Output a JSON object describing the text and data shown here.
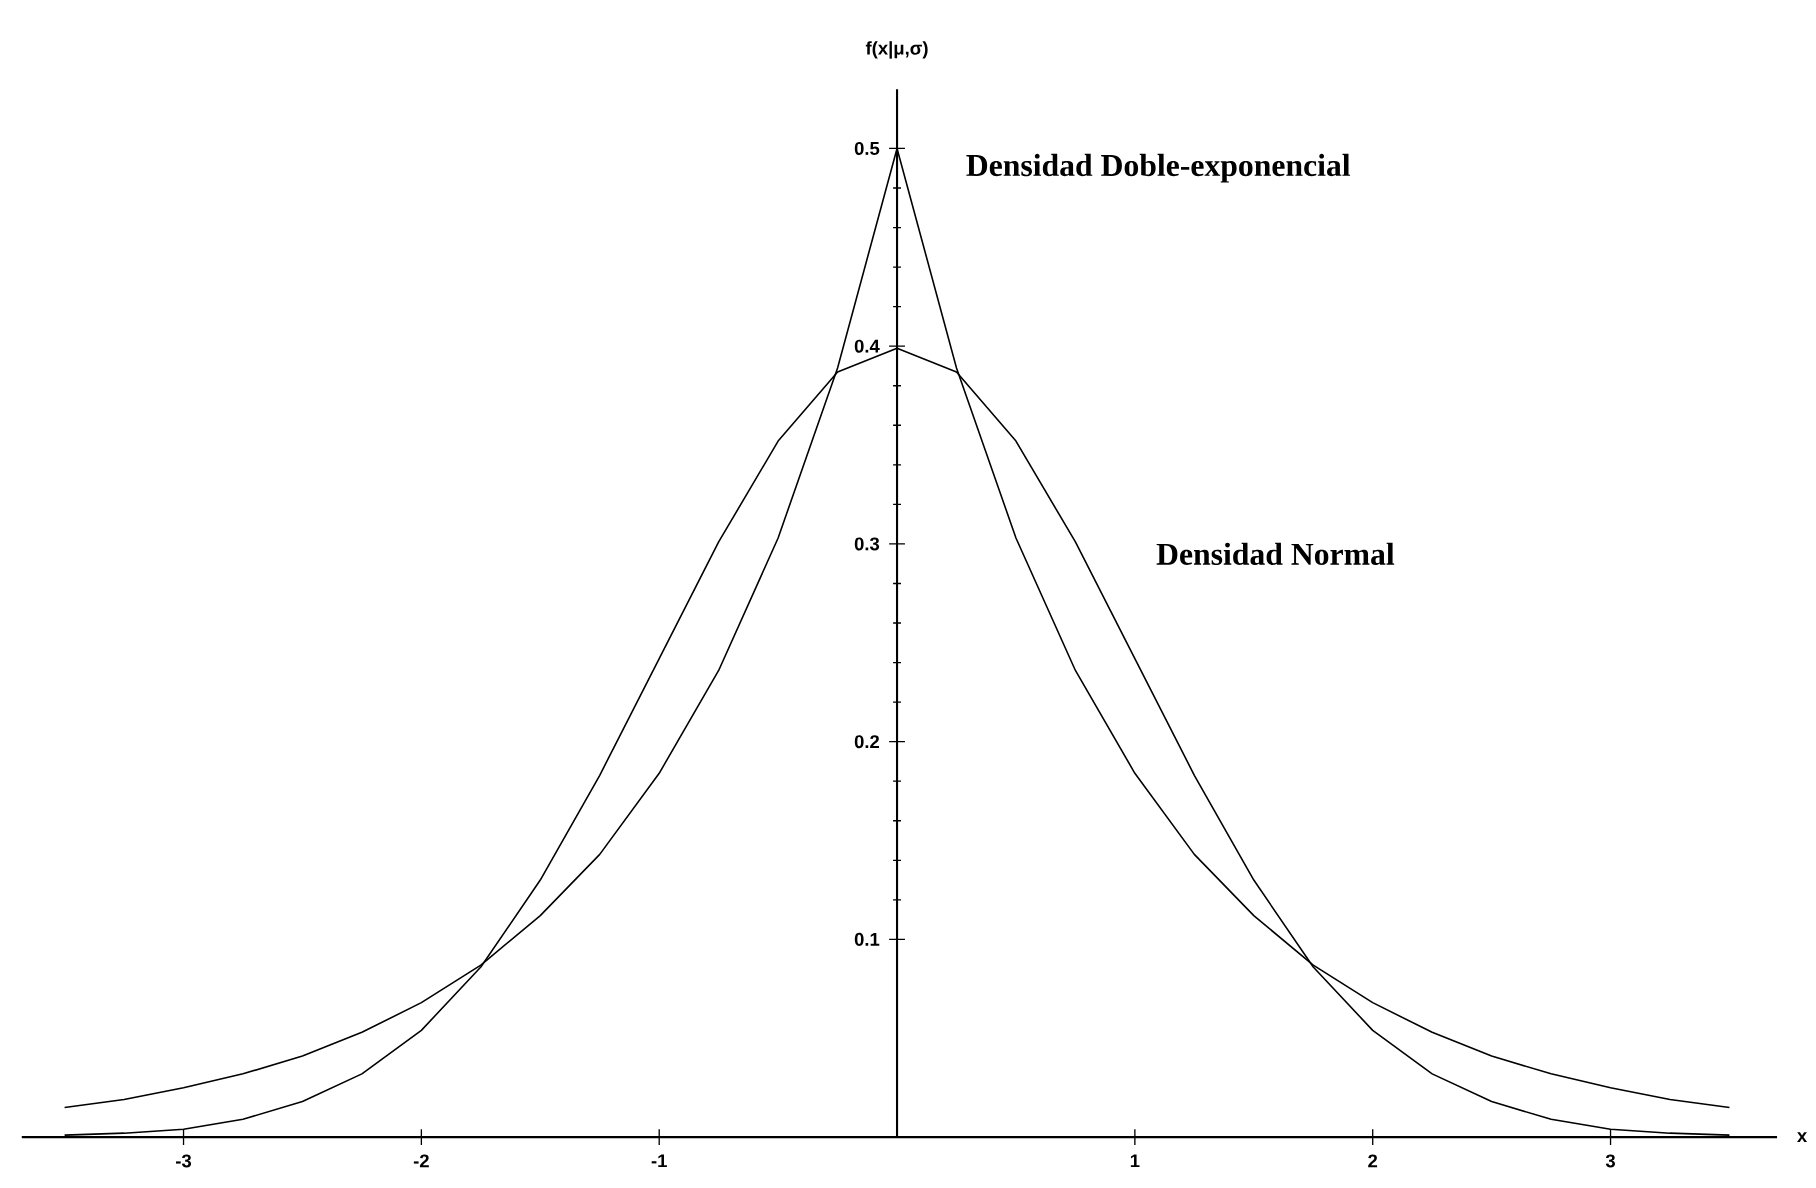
{
  "chart_data": {
    "type": "line",
    "ylabel": "f(x|μ,σ)",
    "xlabel": "x",
    "xlim": [
      -3.68,
      3.7
    ],
    "ylim": [
      0,
      0.53
    ],
    "xticks": [
      -3,
      -2,
      -1,
      1,
      2,
      3
    ],
    "yticks": [
      0.1,
      0.2,
      0.3,
      0.4,
      0.5
    ],
    "legend": false,
    "grid": false,
    "line_style": "solid",
    "x": [
      -3.5,
      -3.25,
      -3,
      -2.75,
      -2.5,
      -2.25,
      -2,
      -1.75,
      -1.5,
      -1.25,
      -1,
      -0.75,
      -0.5,
      -0.25,
      0,
      0.25,
      0.5,
      0.75,
      1,
      1.25,
      1.5,
      1.75,
      2,
      2.25,
      2.5,
      2.75,
      3,
      3.25,
      3.5
    ],
    "series": [
      {
        "name": "Densidad Doble-exponencial",
        "color": "#000000",
        "values": [
          0.015,
          0.019,
          0.025,
          0.032,
          0.041,
          0.053,
          0.068,
          0.087,
          0.112,
          0.143,
          0.184,
          0.236,
          0.303,
          0.389,
          0.5,
          0.389,
          0.303,
          0.236,
          0.184,
          0.143,
          0.112,
          0.087,
          0.068,
          0.053,
          0.041,
          0.032,
          0.025,
          0.019,
          0.015
        ]
      },
      {
        "name": "Densidad Normal",
        "color": "#000000",
        "values": [
          0.001,
          0.002,
          0.004,
          0.009,
          0.018,
          0.032,
          0.054,
          0.086,
          0.13,
          0.183,
          0.242,
          0.301,
          0.352,
          0.387,
          0.399,
          0.387,
          0.352,
          0.301,
          0.242,
          0.183,
          0.13,
          0.086,
          0.054,
          0.032,
          0.018,
          0.009,
          0.004,
          0.002,
          0.001
        ]
      }
    ]
  }
}
